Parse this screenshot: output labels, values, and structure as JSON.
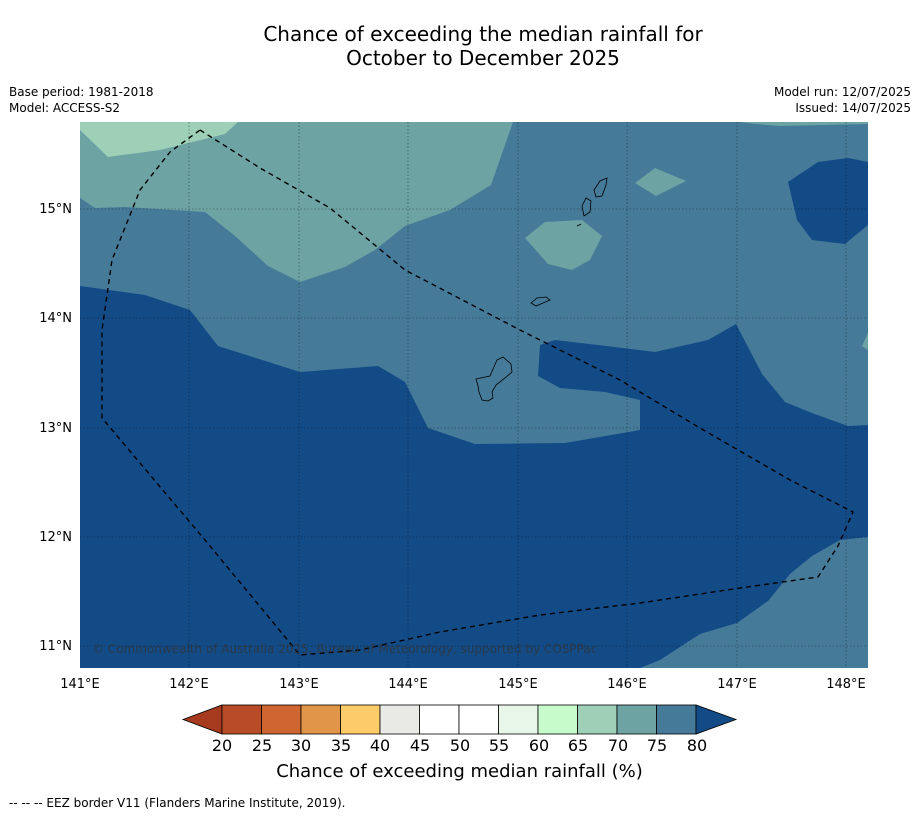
{
  "title_line1": "Chance of exceeding the median rainfall for",
  "title_line2": "October to December 2025",
  "meta_left": {
    "base_period": "Base period: 1981-2018",
    "model": "Model: ACCESS-S2"
  },
  "meta_right": {
    "model_run": "Model run: 12/07/2025",
    "issued": "Issued: 14/07/2025"
  },
  "map": {
    "lat_labels": [
      "15°N",
      "14°N",
      "13°N",
      "12°N",
      "11°N"
    ],
    "lon_labels": [
      "141°E",
      "142°E",
      "143°E",
      "144°E",
      "145°E",
      "146°E",
      "147°E",
      "148°E"
    ],
    "copyright": "© Commonwealth of Australia 2025, Bureau of Meteorology, supported by COSPPac",
    "features": [
      "EEZ boundary (dashed)",
      "Guam",
      "Rota",
      "Tinian",
      "Saipan"
    ],
    "dominant_category": "80+",
    "colors": {
      "c80": "#134b87",
      "c75": "#457a99",
      "c70": "#6da3a3",
      "c65": "#9dd0b7"
    }
  },
  "colorbar": {
    "labels": [
      "20",
      "25",
      "30",
      "35",
      "40",
      "45",
      "50",
      "55",
      "60",
      "65",
      "70",
      "75",
      "80"
    ],
    "colors": [
      "#a63a1f",
      "#b84c28",
      "#cf6632",
      "#e09548",
      "#fdcc68",
      "#e9e9e5",
      "#ffffff",
      "#ffffff",
      "#e8f6ea",
      "#c8fbcb",
      "#9dd0b7",
      "#6da3a3",
      "#457a99",
      "#134b87"
    ],
    "title": "Chance of exceeding median rainfall (%)"
  },
  "footnote": "--  --  -- EEZ border V11 (Flanders Marine Institute, 2019)."
}
